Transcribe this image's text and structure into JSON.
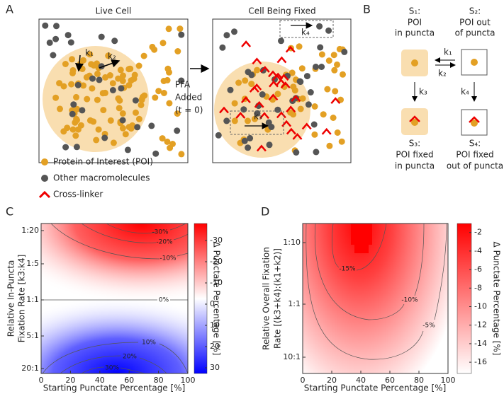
{
  "panel_a": {
    "label": "A",
    "live_cell": {
      "title": "Live Cell",
      "k1": "k₁",
      "k2": "k₂"
    },
    "fixed_cell": {
      "title": "Cell Being Fixed",
      "k3": "k₃",
      "k4": "k₄"
    },
    "arrow_label": [
      "PFA",
      "Added",
      "(t = 0)"
    ],
    "legend": [
      "Protein of Interest (POI)",
      "Other macromolecules",
      "Cross-linker"
    ]
  },
  "panel_b": {
    "label": "B",
    "states": [
      {
        "name": "S₁:",
        "desc": [
          "POI",
          "in puncta"
        ]
      },
      {
        "name": "S₂:",
        "desc": [
          "POI out",
          "of puncta"
        ]
      },
      {
        "name": "S₃:",
        "desc": [
          "POI fixed",
          "in puncta"
        ]
      },
      {
        "name": "S₄:",
        "desc": [
          "POI fixed",
          "out of puncta"
        ]
      }
    ],
    "rates": [
      "k₁",
      "k₂",
      "k₃",
      "k₄"
    ]
  },
  "panel_c": {
    "label": "C",
    "x_label": "Starting Punctate Percentage [%]",
    "y_label": [
      "Relative In-Puncta",
      "Fixation Rate [k3:k4]"
    ],
    "xticks": [
      0,
      20,
      40,
      60,
      80,
      100
    ],
    "yticks": [
      "1:20",
      "1:5",
      "1:1",
      "5:1",
      "20:1"
    ],
    "colorbar_label": "Δ Punctate Percentage [%]",
    "colorbar_ticks": [
      -30,
      -20,
      -10,
      0,
      10,
      20,
      30
    ],
    "contour_labels": [
      "-30%",
      "-20%",
      "-10%",
      "0%",
      "10%",
      "20%",
      "30%"
    ]
  },
  "panel_d": {
    "label": "D",
    "x_label": "Starting Punctate Percentage [%]",
    "y_label": [
      "Relative Overall Fixation",
      "Rate [(k3+k4):(k1+k2)]"
    ],
    "xticks": [
      0,
      20,
      40,
      60,
      80,
      100
    ],
    "yticks": [
      "1:10",
      "1:1",
      "10:1"
    ],
    "colorbar_label": "Δ Punctate Percentage [%]",
    "colorbar_ticks": [
      -16,
      -14,
      -12,
      -10,
      -8,
      -6,
      -4,
      -2
    ],
    "contour_labels": [
      "-15%",
      "-10%",
      "-5%"
    ]
  }
}
